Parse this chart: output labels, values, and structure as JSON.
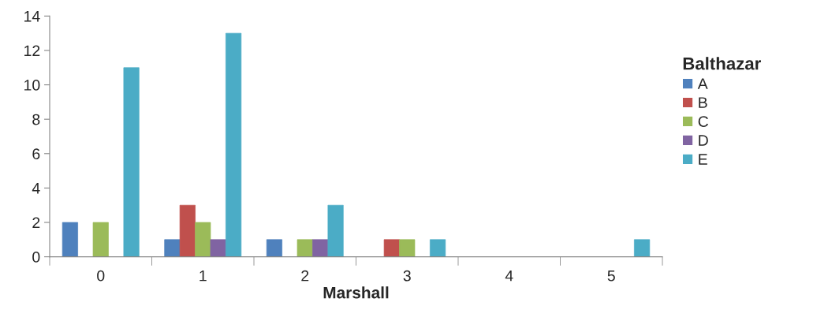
{
  "chart_data": {
    "type": "bar",
    "xlabel": "Marshall",
    "legend_title": "Balthazar",
    "categories": [
      "0",
      "1",
      "2",
      "3",
      "4",
      "5"
    ],
    "series": [
      {
        "name": "A",
        "color": "#4f81bd",
        "values": [
          2,
          1,
          1,
          0,
          0,
          0
        ]
      },
      {
        "name": "B",
        "color": "#c0504d",
        "values": [
          0,
          3,
          0,
          1,
          0,
          0
        ]
      },
      {
        "name": "C",
        "color": "#9bbb59",
        "values": [
          2,
          2,
          1,
          1,
          0,
          0
        ]
      },
      {
        "name": "D",
        "color": "#8064a2",
        "values": [
          0,
          1,
          1,
          0,
          0,
          0
        ]
      },
      {
        "name": "E",
        "color": "#4bacc6",
        "values": [
          11,
          13,
          3,
          1,
          0,
          1
        ]
      }
    ],
    "ylim": [
      0,
      14
    ],
    "yticks": [
      0,
      2,
      4,
      6,
      8,
      10,
      12,
      14
    ],
    "grid": false,
    "legend": "right"
  }
}
